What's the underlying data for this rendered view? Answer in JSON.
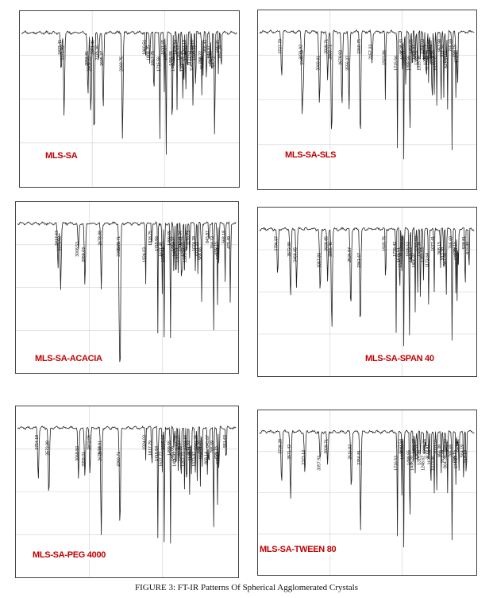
{
  "figure": {
    "caption": "FIGURE 3: FT-IR Patterns Of Spherical Agglomerated Crystals"
  },
  "colors": {
    "trace": "#222222",
    "label": "#c00000",
    "grid": "#cfcfcf",
    "frame": "#444444"
  },
  "chart_data": [
    {
      "type": "line",
      "title": "MLS-SA",
      "peak_labels": [
        "3423.41",
        "3371.92",
        "2958.81",
        "2908.02",
        "2851.46",
        "2775.36",
        "2695.37",
        "2360.75",
        "1960.51",
        "1888.25",
        "1817.75",
        "1715.56",
        "1637.65",
        "1604.94",
        "1499.55",
        "1466.97",
        "1415.54",
        "1365.57",
        "1315.36",
        "1297.19",
        "1267.18",
        "1235.29",
        "1177.53",
        "1143.03",
        "1133.10",
        "1093.33",
        "988.22",
        "964.88",
        "906.43",
        "843.87",
        "817.63",
        "764.72",
        "698.80",
        "652.24"
      ]
    },
    {
      "type": "line",
      "title": "MLS-SA-SLS",
      "peak_labels": [
        "3727.79",
        "3371.92",
        "3349.59",
        "3069.81",
        "2928.71",
        "2858.71",
        "2679.92",
        "2556.27",
        "2360.75",
        "2157.23",
        "1923.86",
        "1715.56",
        "1630.43",
        "1605.63",
        "1569.77",
        "1499.55",
        "1456.55",
        "1406.97",
        "1365.51",
        "1315.36",
        "1258.02",
        "1223.75",
        "1206.22",
        "1173.44",
        "1141.57",
        "1113.82",
        "1074.26",
        "1033.05",
        "957.98",
        "911.50",
        "869.87",
        "843.87",
        "765.69",
        "699.15",
        "672.33"
      ]
    },
    {
      "type": "line",
      "title": "MLS-SA-ACACIA",
      "peak_labels": [
        "3417.63",
        "3371.92",
        "3068.53",
        "2958.03",
        "2678.98",
        "2360.71",
        "2365.73",
        "1924.03",
        "1818.75",
        "1715.56",
        "1637.45",
        "1605.63",
        "1499.55",
        "1441.97",
        "1406.97",
        "1365.51",
        "1315.36",
        "1298.01",
        "1257.61",
        "1223.06",
        "1170.73",
        "1074.28",
        "1031.21",
        "968.66",
        "843.87",
        "764.72",
        "699.15",
        "673.11",
        "568.18",
        "479.49"
      ]
    },
    {
      "type": "line",
      "title": "MLS-SA-SPAN 40",
      "peak_labels": [
        "3796.97",
        "3572.89",
        "3468.65",
        "3057.93",
        "2928.85",
        "2855.49",
        "2526.57",
        "2361.67",
        "1920.75",
        "1739.42",
        "1676.51",
        "1639.38",
        "1604.66",
        "1508.52",
        "1468.62",
        "1406.97",
        "1365.60",
        "1315.36",
        "1261.03",
        "1172.64",
        "1077.41",
        "968.15",
        "913.38",
        "867.59",
        "765.69",
        "699.15",
        "676.07",
        "655.35",
        "539.81",
        "473.49"
      ]
    },
    {
      "type": "line",
      "title": "MLS-SA-PEG 4000",
      "peak_labels": [
        "3754.18",
        "3572.89",
        "3068.50",
        "2958.01",
        "2872.06",
        "2679.91",
        "2679.64",
        "2360.71",
        "1924.03",
        "1817.79",
        "1715.54",
        "1637.77",
        "1605.63",
        "1499.55",
        "1441.06",
        "1406.97",
        "1365.31",
        "1330.27",
        "1315.36",
        "1257.71",
        "1223.16",
        "1171.02",
        "1143.71",
        "1073.97",
        "1041.25",
        "988.20",
        "960.71",
        "868.14",
        "843.87",
        "765.69",
        "699.15",
        "672.15",
        "551.63"
      ]
    },
    {
      "type": "line",
      "title": "MLS-SA-TWEEN 80",
      "peak_labels": [
        "3728.28",
        "3571.42",
        "3323.12",
        "3057.93",
        "2929.71",
        "2516.93",
        "2356.81",
        "1716.53",
        "1637.54",
        "1605.59",
        "1499.55",
        "1438.20",
        "1406.97",
        "1365.51",
        "1315.36",
        "1248.62",
        "1223.76",
        "1172.41",
        "1135.64",
        "1073.86",
        "1031.55",
        "956.38",
        "913.24",
        "864.28",
        "843.87",
        "765.69",
        "699.15",
        "674.07",
        "647.52",
        "564.19",
        "519.19"
      ]
    }
  ],
  "panels": [
    {
      "title": "MLS-SA"
    },
    {
      "title": "MLS-SA-SLS"
    },
    {
      "title": "MLS-SA-ACACIA"
    },
    {
      "title": "MLS-SA-SPAN 40"
    },
    {
      "title": "MLS-SA-PEG 4000"
    },
    {
      "title": "MLS-SA-TWEEN 80"
    }
  ]
}
